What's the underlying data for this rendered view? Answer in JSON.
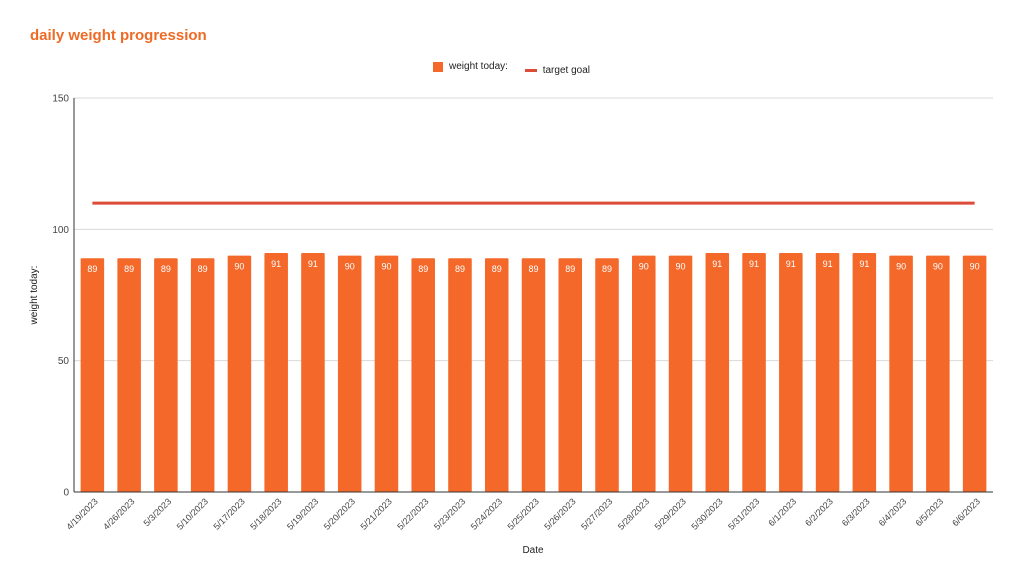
{
  "colors": {
    "title": "#ee6b25",
    "bar": "#f4682a",
    "target": "#dd4b39",
    "grid": "#d9d9d9",
    "axis": "#333333"
  },
  "chart_data": {
    "type": "bar",
    "title": "daily weight progression",
    "xlabel": "Date",
    "ylabel": "weight today:",
    "ylim": [
      0,
      150
    ],
    "yticks": [
      0,
      50,
      100,
      150
    ],
    "grid": true,
    "legend_position": "top",
    "categories": [
      "4/19/2023",
      "4/26/2023",
      "5/3/2023",
      "5/10/2023",
      "5/17/2023",
      "5/18/2023",
      "5/19/2023",
      "5/20/2023",
      "5/21/2023",
      "5/22/2023",
      "5/23/2023",
      "5/24/2023",
      "5/25/2023",
      "5/26/2023",
      "5/27/2023",
      "5/28/2023",
      "5/29/2023",
      "5/30/2023",
      "5/31/2023",
      "6/1/2023",
      "6/2/2023",
      "6/3/2023",
      "6/4/2023",
      "6/5/2023",
      "6/6/2023"
    ],
    "series": [
      {
        "name": "weight today:",
        "kind": "bar",
        "values": [
          89,
          89,
          89,
          89,
          90,
          91,
          91,
          90,
          90,
          89,
          89,
          89,
          89,
          89,
          89,
          90,
          90,
          91,
          91,
          91,
          91,
          91,
          90,
          90,
          90
        ]
      },
      {
        "name": "target goal",
        "kind": "line",
        "values": [
          110,
          110,
          110,
          110,
          110,
          110,
          110,
          110,
          110,
          110,
          110,
          110,
          110,
          110,
          110,
          110,
          110,
          110,
          110,
          110,
          110,
          110,
          110,
          110,
          110
        ]
      }
    ]
  }
}
